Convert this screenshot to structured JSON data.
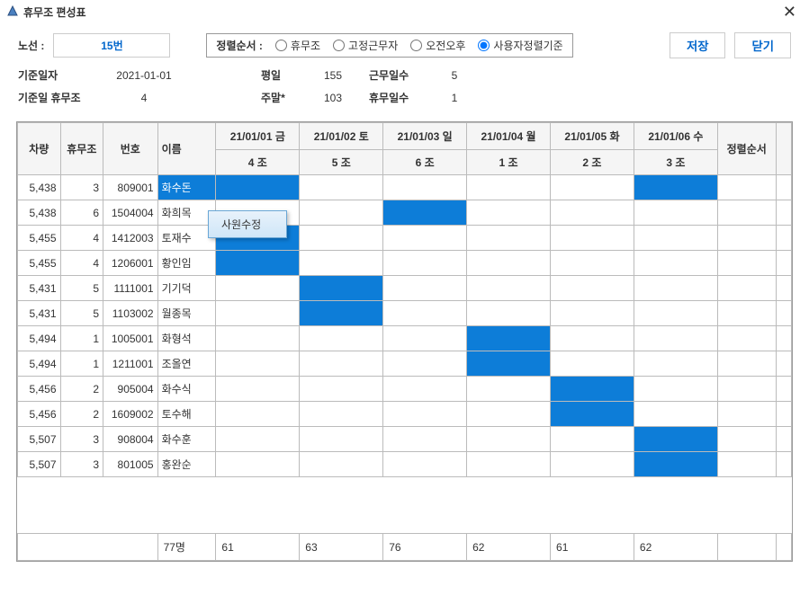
{
  "window": {
    "title": "휴무조 편성표",
    "close": "✕"
  },
  "toolbar": {
    "route_label": "노선 :",
    "route_value": "15번",
    "sort_label": "정렬순서 :",
    "sort_options": [
      "휴무조",
      "고정근무자",
      "오전오후",
      "사용자정렬기준"
    ],
    "sort_selected": 3,
    "save": "저장",
    "close": "닫기"
  },
  "info": {
    "base_date_label": "기준일자",
    "base_date": "2021-01-01",
    "weekday_label": "평일",
    "weekday": "155",
    "workdays_label": "근무일수",
    "workdays": "5",
    "base_group_label": "기준일 휴무조",
    "base_group": "4",
    "weekend_label": "주말*",
    "weekend": "103",
    "offdays_label": "휴무일수",
    "offdays": "1"
  },
  "columns": {
    "car": "차량",
    "group": "휴무조",
    "num": "번호",
    "name": "이름",
    "dates": [
      "21/01/01 금",
      "21/01/02 토",
      "21/01/03 일",
      "21/01/04 월",
      "21/01/05 화",
      "21/01/06 수"
    ],
    "subheads": [
      "4 조",
      "5 조",
      "6 조",
      "1 조",
      "2 조",
      "3 조"
    ],
    "sort": "정렬순서"
  },
  "rows": [
    {
      "car": "5,438",
      "grp": "3",
      "num": "809001",
      "name": "화수돈",
      "blue": [
        0,
        5
      ],
      "sel": true
    },
    {
      "car": "5,438",
      "grp": "6",
      "num": "1504004",
      "name": "화희목",
      "blue": [
        2
      ]
    },
    {
      "car": "5,455",
      "grp": "4",
      "num": "1412003",
      "name": "토재수",
      "blue": [
        0
      ]
    },
    {
      "car": "5,455",
      "grp": "4",
      "num": "1206001",
      "name": "황인임",
      "blue": [
        0
      ]
    },
    {
      "car": "5,431",
      "grp": "5",
      "num": "1111001",
      "name": "기기덕",
      "blue": [
        1
      ]
    },
    {
      "car": "5,431",
      "grp": "5",
      "num": "1103002",
      "name": "월종목",
      "blue": [
        1
      ]
    },
    {
      "car": "5,494",
      "grp": "1",
      "num": "1005001",
      "name": "화형석",
      "blue": [
        3
      ]
    },
    {
      "car": "5,494",
      "grp": "1",
      "num": "1211001",
      "name": "조올연",
      "blue": [
        3
      ]
    },
    {
      "car": "5,456",
      "grp": "2",
      "num": "905004",
      "name": "화수식",
      "blue": [
        4
      ]
    },
    {
      "car": "5,456",
      "grp": "2",
      "num": "1609002",
      "name": "토수해",
      "blue": [
        4
      ]
    },
    {
      "car": "5,507",
      "grp": "3",
      "num": "908004",
      "name": "화수훈",
      "blue": [
        5
      ]
    },
    {
      "car": "5,507",
      "grp": "3",
      "num": "801005",
      "name": "홍완순",
      "blue": [
        5
      ]
    }
  ],
  "footer": {
    "count": "77명",
    "totals": [
      "61",
      "63",
      "76",
      "62",
      "61",
      "62"
    ]
  },
  "context_menu": {
    "item": "사원수정"
  }
}
